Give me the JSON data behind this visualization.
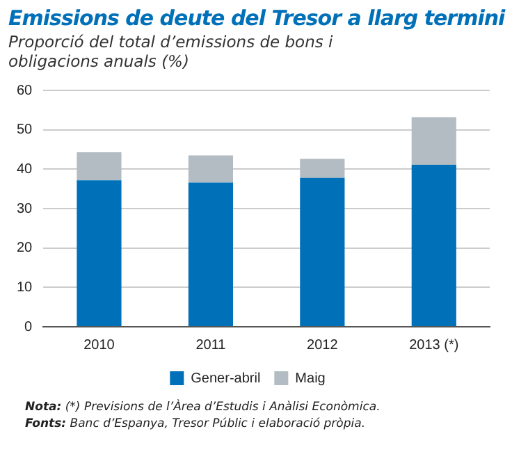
{
  "chart_data": {
    "type": "bar",
    "title": "Emissions de deute del Tresor a llarg termini",
    "subtitle": "Proporció del total d’emissions de bons i obligacions anuals (%)",
    "categories": [
      "2010",
      "2011",
      "2012",
      "2013 (*)"
    ],
    "stacked": true,
    "series": [
      {
        "name": "Gener-abril",
        "color": "#0070b8",
        "values": [
          37.2,
          36.6,
          37.8,
          41.1
        ]
      },
      {
        "name": "Maig",
        "color": "#b2bcc2",
        "values": [
          7.1,
          6.9,
          4.8,
          12.1
        ]
      }
    ],
    "ylim": [
      0,
      60
    ],
    "yticks": [
      0,
      10,
      20,
      30,
      40,
      50,
      60
    ],
    "grid": "y",
    "legend": "bottom",
    "annotations": [
      "Nota: (*) Previsions de l’Àrea d’Estudis i Anàlisi Econòmica.",
      "Fonts: Banc d’Espanya, Tresor Públic i elaboració pròpia."
    ]
  }
}
